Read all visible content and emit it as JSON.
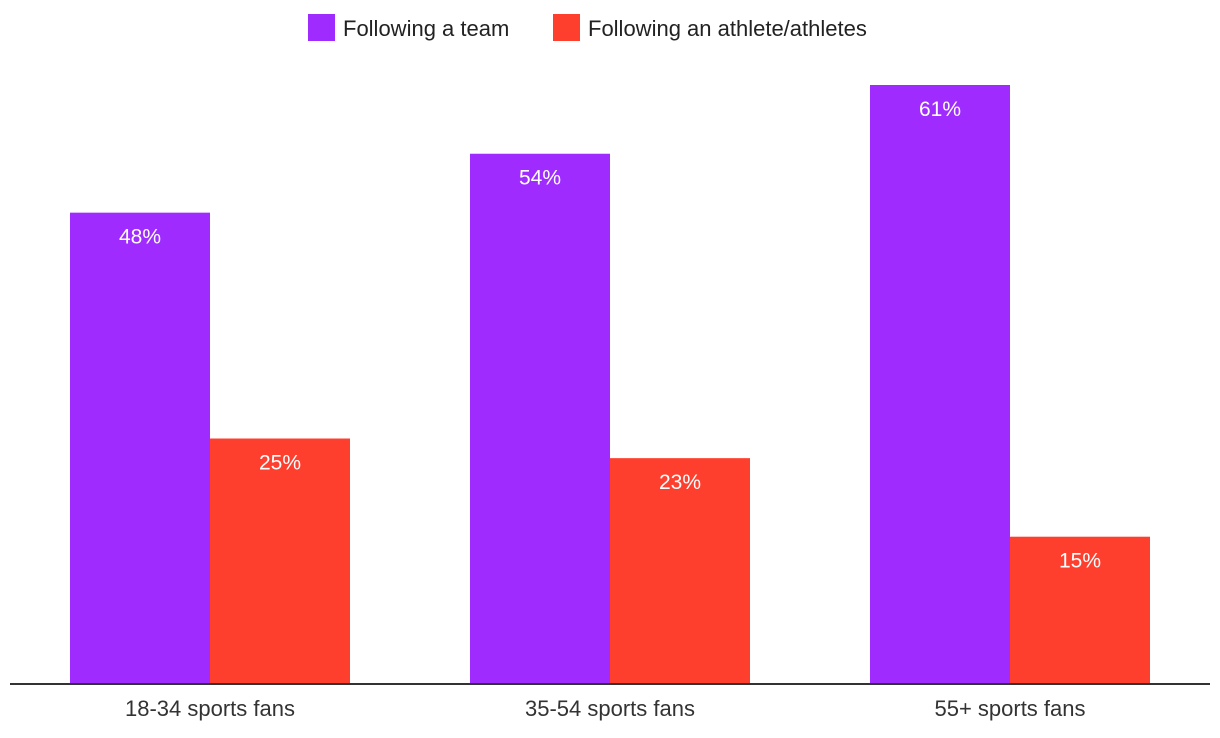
{
  "chart_data": {
    "type": "bar",
    "title": "",
    "xlabel": "",
    "ylabel": "",
    "categories": [
      "18-34 sports fans",
      "35-54 sports fans",
      "55+ sports fans"
    ],
    "series": [
      {
        "name": "Following a team",
        "values": [
          48,
          54,
          61
        ],
        "labels": [
          "48%",
          "54%",
          "61%"
        ],
        "color": "#a02bff"
      },
      {
        "name": "Following an athlete/athletes",
        "values": [
          25,
          23,
          15
        ],
        "labels": [
          "25%",
          "23%",
          "15%"
        ],
        "color": "#ff3f2e"
      }
    ],
    "ylim": [
      0,
      70
    ],
    "grid": false,
    "legend": "top-center",
    "axis_color": "#333333"
  }
}
